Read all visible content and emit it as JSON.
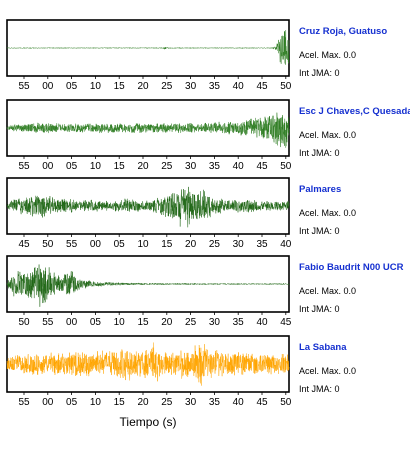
{
  "xlabel": "Tiempo (s)",
  "chart_data": [
    {
      "type": "line",
      "station": "Cruz Roja, Guatuso",
      "info": [
        "Acel. Max. 0.0",
        "Int JMA: 0"
      ],
      "color": "#2e7d22",
      "x_tick_labels": [
        "55",
        "00",
        "05",
        "10",
        "15",
        "20",
        "25",
        "30",
        "35",
        "40",
        "45",
        "50"
      ],
      "envelope": [
        [
          0,
          0.02
        ],
        [
          0.55,
          0.02
        ],
        [
          0.56,
          0.06
        ],
        [
          0.58,
          0.02
        ],
        [
          0.94,
          0.02
        ],
        [
          0.955,
          0.1
        ],
        [
          0.965,
          0.45
        ],
        [
          0.975,
          0.85
        ],
        [
          0.985,
          1.0
        ],
        [
          1.0,
          0.75
        ]
      ]
    },
    {
      "type": "line",
      "station": "Esc J Chaves,C Quesada",
      "info": [
        "Acel. Max. 0.0",
        "Int JMA: 0"
      ],
      "color": "#2e7d22",
      "x_tick_labels": [
        "55",
        "00",
        "05",
        "10",
        "15",
        "20",
        "25",
        "30",
        "35",
        "40",
        "45",
        "50"
      ],
      "envelope": [
        [
          0,
          0.05
        ],
        [
          0.02,
          0.15
        ],
        [
          0.1,
          0.22
        ],
        [
          0.2,
          0.18
        ],
        [
          0.3,
          0.2
        ],
        [
          0.5,
          0.2
        ],
        [
          0.7,
          0.2
        ],
        [
          0.8,
          0.28
        ],
        [
          0.88,
          0.4
        ],
        [
          0.93,
          0.6
        ],
        [
          0.97,
          0.85
        ],
        [
          1.0,
          0.75
        ]
      ]
    },
    {
      "type": "line",
      "station": "Palmares",
      "info": [
        "Acel. Max. 0.0",
        "Int JMA: 0"
      ],
      "color": "#1e6614",
      "x_tick_labels": [
        "45",
        "50",
        "55",
        "00",
        "05",
        "10",
        "15",
        "20",
        "25",
        "30",
        "35",
        "40"
      ],
      "envelope": [
        [
          0,
          0.05
        ],
        [
          0.02,
          0.3
        ],
        [
          0.08,
          0.4
        ],
        [
          0.14,
          0.5
        ],
        [
          0.18,
          0.3
        ],
        [
          0.3,
          0.25
        ],
        [
          0.38,
          0.2
        ],
        [
          0.42,
          0.35
        ],
        [
          0.45,
          0.25
        ],
        [
          0.5,
          0.2
        ],
        [
          0.56,
          0.4
        ],
        [
          0.6,
          0.7
        ],
        [
          0.63,
          1.0
        ],
        [
          0.66,
          0.6
        ],
        [
          0.7,
          0.65
        ],
        [
          0.73,
          0.4
        ],
        [
          0.78,
          0.22
        ],
        [
          0.85,
          0.3
        ],
        [
          0.92,
          0.2
        ],
        [
          1.0,
          0.2
        ]
      ]
    },
    {
      "type": "line",
      "station": "Fabio Baudrit N00 UCR",
      "info": [
        "Acel. Max. 0.0",
        "Int JMA: 0"
      ],
      "color": "#1e6614",
      "x_tick_labels": [
        "50",
        "55",
        "00",
        "05",
        "10",
        "15",
        "20",
        "25",
        "30",
        "35",
        "40",
        "45"
      ],
      "envelope": [
        [
          0,
          0.1
        ],
        [
          0.02,
          0.5
        ],
        [
          0.06,
          0.6
        ],
        [
          0.1,
          0.75
        ],
        [
          0.13,
          1.0
        ],
        [
          0.16,
          0.55
        ],
        [
          0.19,
          0.3
        ],
        [
          0.21,
          0.45
        ],
        [
          0.23,
          0.55
        ],
        [
          0.26,
          0.25
        ],
        [
          0.3,
          0.12
        ],
        [
          0.4,
          0.06
        ],
        [
          0.5,
          0.04
        ],
        [
          0.7,
          0.03
        ],
        [
          1.0,
          0.03
        ]
      ]
    },
    {
      "type": "line",
      "station": "La Sabana",
      "info": [
        "Acel. Max. 0.0",
        "Int JMA: 0"
      ],
      "color": "#ffa500",
      "x_tick_labels": [
        "55",
        "00",
        "05",
        "10",
        "15",
        "20",
        "25",
        "30",
        "35",
        "40",
        "45",
        "50"
      ],
      "envelope": [
        [
          0,
          0.35
        ],
        [
          0.1,
          0.45
        ],
        [
          0.2,
          0.5
        ],
        [
          0.3,
          0.55
        ],
        [
          0.38,
          0.5
        ],
        [
          0.42,
          0.8
        ],
        [
          0.46,
          0.55
        ],
        [
          0.5,
          0.6
        ],
        [
          0.52,
          0.9
        ],
        [
          0.55,
          0.5
        ],
        [
          0.6,
          0.55
        ],
        [
          0.66,
          0.65
        ],
        [
          0.68,
          1.0
        ],
        [
          0.72,
          0.6
        ],
        [
          0.8,
          0.5
        ],
        [
          0.9,
          0.45
        ],
        [
          1.0,
          0.4
        ]
      ]
    }
  ]
}
